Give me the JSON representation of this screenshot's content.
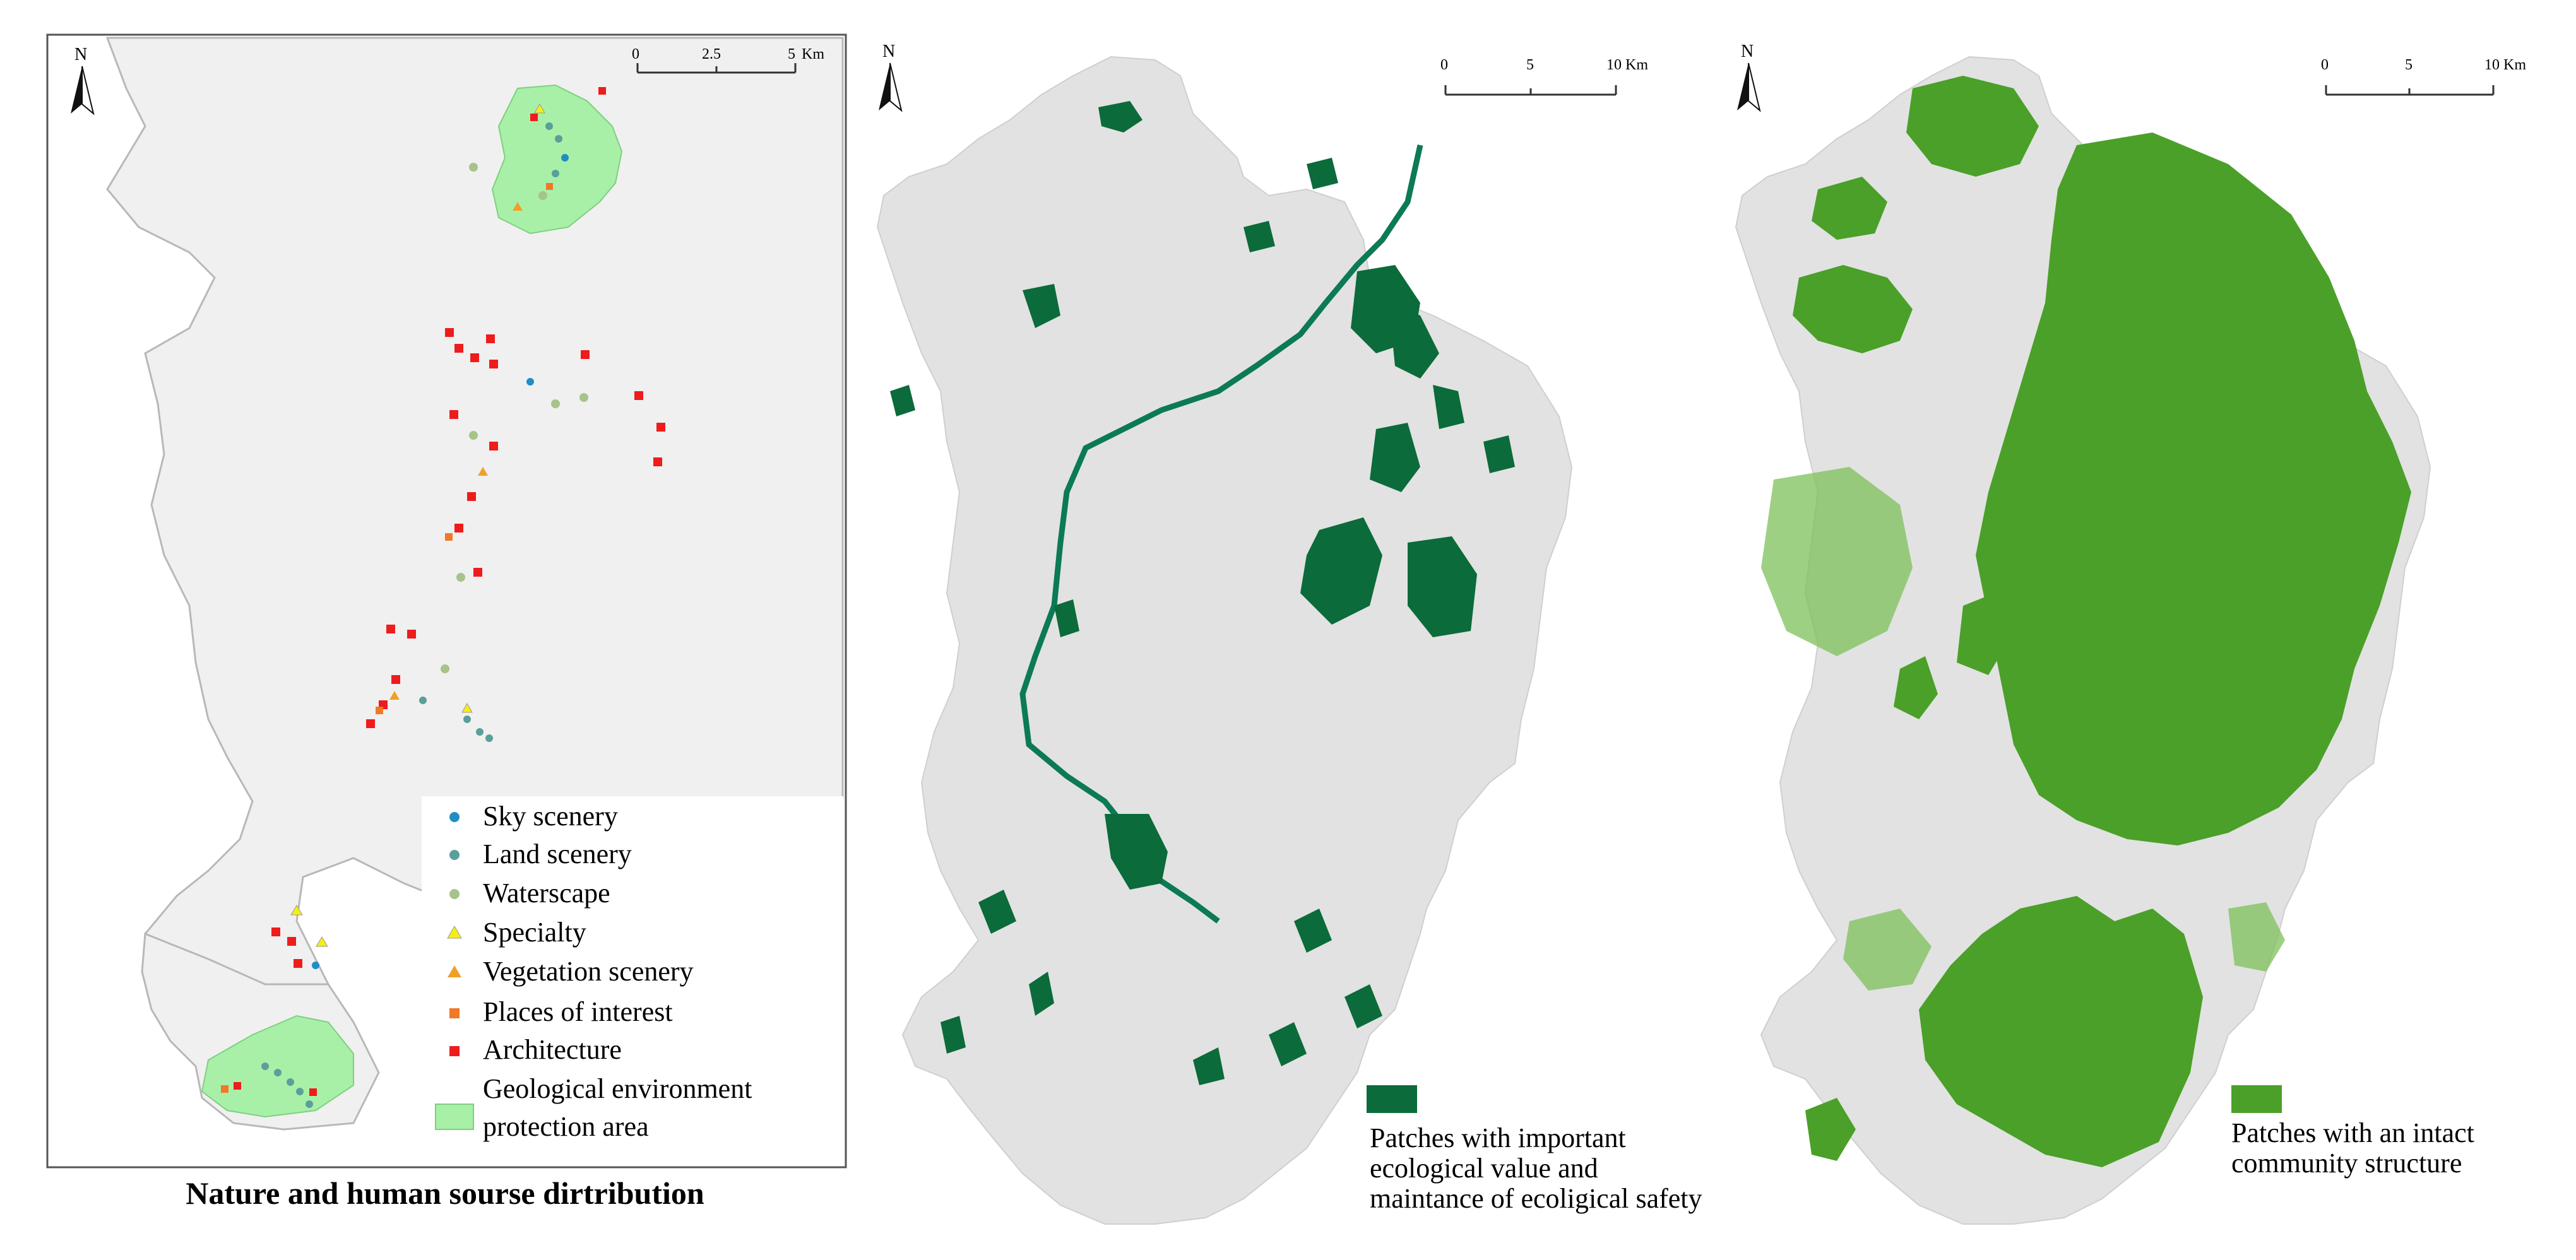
{
  "panel1": {
    "caption": "Nature and human sourse dirtribution",
    "north": "N",
    "scalebar": {
      "ticks": [
        "0",
        "2.5",
        "5"
      ],
      "unit": "Km"
    },
    "legend": [
      {
        "key": "sky",
        "label": "Sky scenery",
        "shape": "circle",
        "color": "#1f8ec4"
      },
      {
        "key": "land",
        "label": "Land scenery",
        "shape": "circle",
        "color": "#5a9f9a"
      },
      {
        "key": "water",
        "label": "Waterscape",
        "shape": "circle",
        "color": "#a6c38a"
      },
      {
        "key": "specialty",
        "label": "Specialty",
        "shape": "triangle",
        "color": "#f6ee12"
      },
      {
        "key": "vegetation",
        "label": "Vegetation scenery",
        "shape": "triangle",
        "color": "#f0a028"
      },
      {
        "key": "interest",
        "label": "Places of interest",
        "shape": "square",
        "color": "#f07828"
      },
      {
        "key": "architecture",
        "label": "Architecture",
        "shape": "square",
        "color": "#ee1c1c"
      },
      {
        "key": "geo",
        "label_line1": "Geological environment",
        "label_line2": "protection area",
        "shape": "patch",
        "color": "#a8f0a8"
      }
    ]
  },
  "panel2": {
    "north": "N",
    "scalebar": {
      "ticks": [
        "0",
        "5",
        "10"
      ],
      "unit": "Km"
    },
    "legend": {
      "color": "#0b6b3a",
      "label_line1": "Patches with important",
      "label_line2": "ecological value and",
      "label_line3": "maintance of ecoligical safety"
    }
  },
  "panel3": {
    "north": "N",
    "scalebar": {
      "ticks": [
        "0",
        "5",
        "10"
      ],
      "unit": "Km"
    },
    "legend": {
      "color": "#4aa028",
      "label_line1": "Patches with an intact",
      "label_line2": "community structure"
    }
  }
}
